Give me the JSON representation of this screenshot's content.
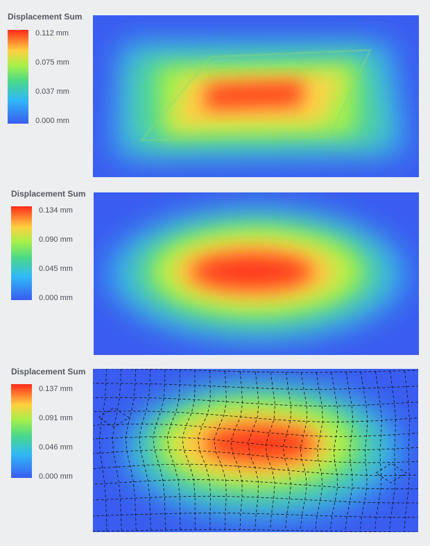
{
  "panels": [
    {
      "legend_title": "Displacement Sum",
      "ticks": [
        "0.112 mm",
        "0.075 mm",
        "0.037 mm",
        "0.000 mm"
      ],
      "chart_data": {
        "type": "heatmap",
        "title": "Displacement Sum",
        "unit": "mm",
        "colorbar_range": [
          0.0,
          0.112
        ],
        "colorbar_ticks": [
          0.112,
          0.075,
          0.037,
          0.0
        ],
        "colormap": [
          "#ff2a1a",
          "#ffd040",
          "#a6f04a",
          "#4ad88a",
          "#30b8f8",
          "#3a5cf0"
        ],
        "mesh_overlay": false
      }
    },
    {
      "legend_title": "Displacement Sum",
      "ticks": [
        "0.134 mm",
        "0.090 mm",
        "0.045 mm",
        "0.000 mm"
      ],
      "chart_data": {
        "type": "heatmap",
        "title": "Displacement Sum",
        "unit": "mm",
        "colorbar_range": [
          0.0,
          0.134
        ],
        "colorbar_ticks": [
          0.134,
          0.09,
          0.045,
          0.0
        ],
        "colormap": [
          "#ff2a1a",
          "#ffd040",
          "#a6f04a",
          "#4ad88a",
          "#30b8f8",
          "#3a5cf0"
        ],
        "mesh_overlay": false
      }
    },
    {
      "legend_title": "Displacement Sum",
      "ticks": [
        "0.137 mm",
        "0.091 mm",
        "0.046 mm",
        "0.000 mm"
      ],
      "chart_data": {
        "type": "heatmap",
        "title": "Displacement Sum",
        "unit": "mm",
        "colorbar_range": [
          0.0,
          0.137
        ],
        "colorbar_ticks": [
          0.137,
          0.091,
          0.046,
          0.0
        ],
        "colormap": [
          "#ff2a1a",
          "#ffd040",
          "#a6f04a",
          "#4ad88a",
          "#30b8f8",
          "#3a5cf0"
        ],
        "mesh_overlay": true
      }
    }
  ]
}
